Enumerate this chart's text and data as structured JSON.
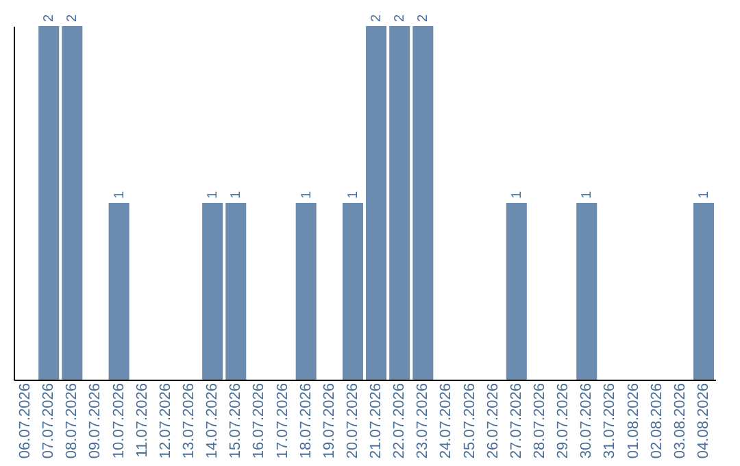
{
  "chart_data": {
    "type": "bar",
    "categories": [
      "06.07.2026",
      "07.07.2026",
      "08.07.2026",
      "09.07.2026",
      "10.07.2026",
      "11.07.2026",
      "12.07.2026",
      "13.07.2026",
      "14.07.2026",
      "15.07.2026",
      "16.07.2026",
      "17.07.2026",
      "18.07.2026",
      "19.07.2026",
      "20.07.2026",
      "21.07.2026",
      "22.07.2026",
      "23.07.2026",
      "24.07.2026",
      "25.07.2026",
      "26.07.2026",
      "27.07.2026",
      "28.07.2026",
      "29.07.2026",
      "30.07.2026",
      "31.07.2026",
      "01.08.2026",
      "02.08.2026",
      "03.08.2026",
      "04.08.2026"
    ],
    "values": [
      0,
      2,
      2,
      0,
      1,
      0,
      0,
      0,
      1,
      1,
      0,
      0,
      1,
      0,
      1,
      2,
      2,
      2,
      0,
      0,
      0,
      1,
      0,
      0,
      1,
      0,
      0,
      0,
      0,
      1
    ],
    "value_labels": [
      null,
      "2",
      "2",
      null,
      "1",
      null,
      null,
      null,
      "1",
      "1",
      null,
      null,
      "1",
      null,
      "1",
      "2",
      "2",
      "2",
      null,
      null,
      null,
      "1",
      null,
      null,
      "1",
      null,
      null,
      null,
      null,
      "1"
    ],
    "color": "#6b8cae",
    "tick_labels": "x",
    "grid": false
  }
}
